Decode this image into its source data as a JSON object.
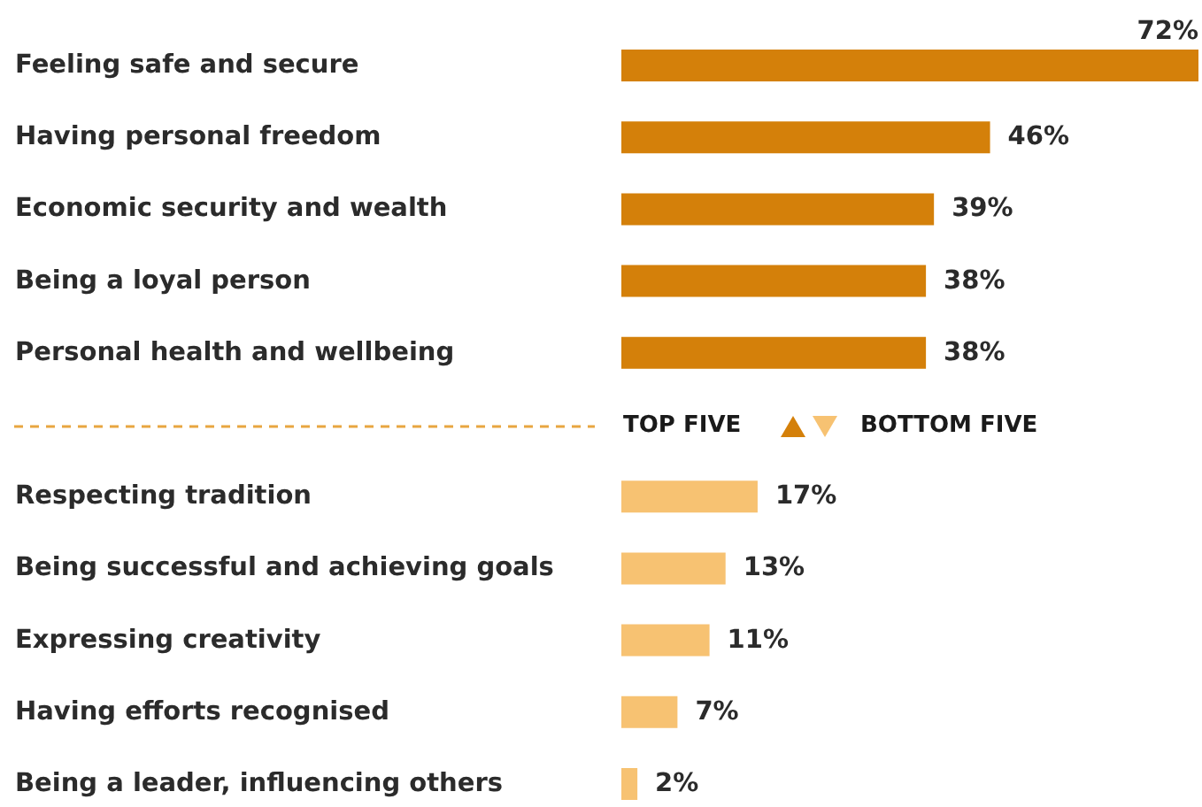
{
  "chart_data": {
    "type": "bar",
    "orientation": "horizontal",
    "categories": [
      "Feeling safe and secure",
      "Having personal freedom",
      "Economic security and wealth",
      "Being a loyal person",
      "Personal health and wellbeing",
      null,
      "Respecting tradition",
      "Being successful and achieving goals",
      "Expressing creativity",
      "Having efforts recognised",
      "Being a leader, influencing others"
    ],
    "values": [
      72,
      46,
      39,
      38,
      38,
      null,
      17,
      13,
      11,
      7,
      2
    ],
    "colors": [
      "#d4800a",
      "#d4800a",
      "#d4800a",
      "#d4800a",
      "#d4800a",
      null,
      "#f7c272",
      "#f7c272",
      "#f7c272",
      "#f7c272",
      "#f7c272"
    ],
    "value_labels": [
      "72%",
      "46%",
      "39%",
      "38%",
      "38%",
      null,
      "17%",
      "13%",
      "11%",
      "7%",
      "2%"
    ],
    "annotations": [
      "TOP FIVE",
      "BOTTOM FIVE"
    ]
  }
}
